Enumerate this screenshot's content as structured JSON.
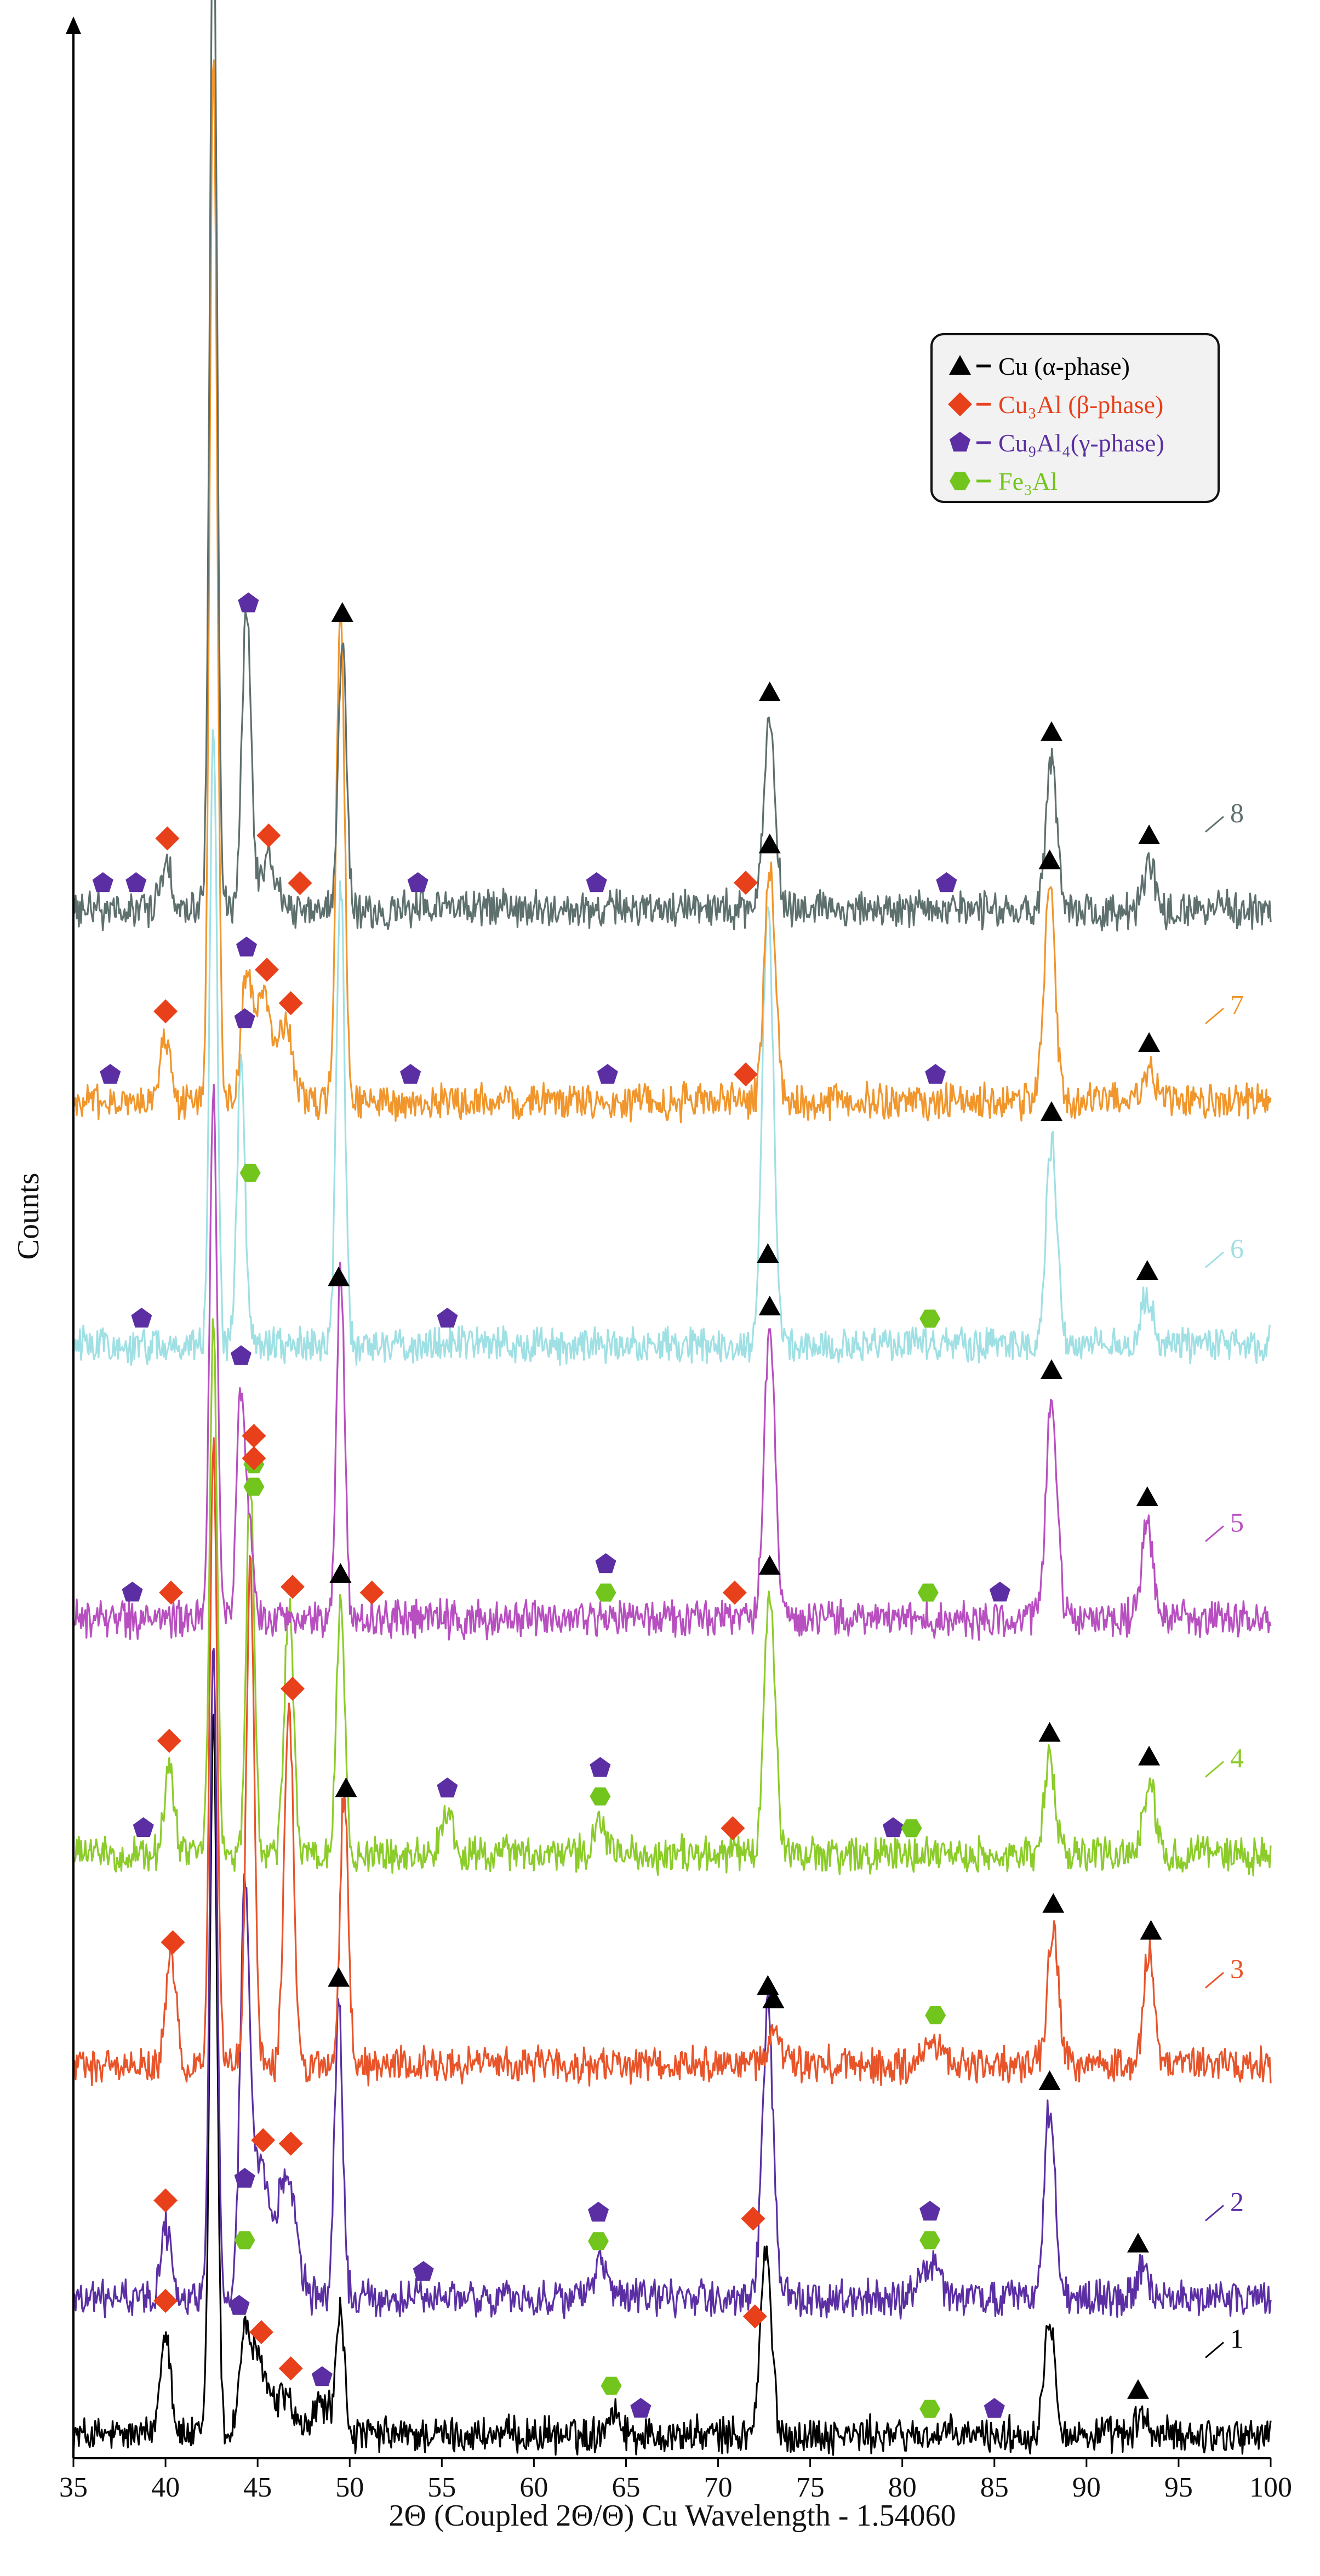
{
  "chart_data": {
    "type": "line",
    "xlabel": "2Θ (Coupled 2Θ/Θ) Cu Wavelength - 1.54060",
    "ylabel": "Counts",
    "xlim": [
      35,
      100
    ],
    "x_ticks": [
      35,
      40,
      45,
      50,
      55,
      60,
      65,
      70,
      75,
      80,
      85,
      90,
      95,
      100
    ],
    "y_ticks": false,
    "grid": false,
    "legend": {
      "placement": "top-right",
      "entries": [
        {
          "key": "alpha",
          "marker": "triangle",
          "color": "#000000",
          "label": "Cu (α-phase)"
        },
        {
          "key": "beta",
          "marker": "diamond",
          "color": "#e8401a",
          "label": "Cu₃Al (β-phase)"
        },
        {
          "key": "gamma",
          "marker": "pentagon",
          "color": "#5b2fa3",
          "label": "Cu₉Al₄(γ-phase)"
        },
        {
          "key": "fe3al",
          "marker": "hexagon",
          "color": "#72c51c",
          "label": "Fe₃Al"
        }
      ]
    },
    "series": [
      {
        "label": "1",
        "color": "#000000",
        "peaks": [
          [
            40.0,
            0.68,
            0.28
          ],
          [
            42.6,
            4.55,
            0.2
          ],
          [
            44.3,
            0.55,
            0.3
          ],
          [
            45.1,
            0.45,
            0.5
          ],
          [
            46.5,
            0.25,
            0.4
          ],
          [
            48.5,
            0.2,
            0.5
          ],
          [
            49.5,
            0.75,
            0.22
          ],
          [
            64.3,
            0.15,
            0.4
          ],
          [
            72.6,
            1.15,
            0.3
          ],
          [
            88.0,
            0.75,
            0.3
          ],
          [
            93.0,
            0.12,
            0.3
          ]
        ],
        "markers": [
          {
            "type": "beta",
            "x": 40.0
          },
          {
            "type": "gamma",
            "x": 44.0
          },
          {
            "type": "beta",
            "x": 45.2
          },
          {
            "type": "beta",
            "x": 46.8
          },
          {
            "type": "gamma",
            "x": 48.5
          },
          {
            "type": "fe3al",
            "x": 64.2
          },
          {
            "type": "gamma",
            "x": 65.8
          },
          {
            "type": "beta",
            "x": 72.0
          },
          {
            "type": "fe3al",
            "x": 81.5
          },
          {
            "type": "gamma",
            "x": 85.0
          },
          {
            "type": "alpha",
            "x": 92.8
          }
        ]
      },
      {
        "label": "2",
        "color": "#5b2fa3",
        "peaks": [
          [
            40.0,
            0.45,
            0.28
          ],
          [
            42.6,
            4.15,
            0.2
          ],
          [
            44.3,
            2.4,
            0.25
          ],
          [
            45.1,
            0.8,
            0.5
          ],
          [
            46.6,
            0.8,
            0.5
          ],
          [
            49.4,
            1.85,
            0.22
          ],
          [
            63.6,
            0.2,
            0.4
          ],
          [
            72.7,
            1.8,
            0.3
          ],
          [
            81.5,
            0.2,
            0.5
          ],
          [
            88.0,
            1.2,
            0.3
          ],
          [
            93.0,
            0.18,
            0.3
          ]
        ],
        "markers": [
          {
            "type": "beta",
            "x": 40.0
          },
          {
            "type": "gamma",
            "x": 44.3
          },
          {
            "type": "fe3al",
            "x": 44.3
          },
          {
            "type": "beta",
            "x": 45.3
          },
          {
            "type": "beta",
            "x": 46.8
          },
          {
            "type": "alpha",
            "x": 49.4
          },
          {
            "type": "gamma",
            "x": 54.0
          },
          {
            "type": "gamma",
            "x": 63.5
          },
          {
            "type": "fe3al",
            "x": 63.5
          },
          {
            "type": "beta",
            "x": 71.9
          },
          {
            "type": "alpha",
            "x": 72.7
          },
          {
            "type": "gamma",
            "x": 81.5
          },
          {
            "type": "fe3al",
            "x": 81.5
          },
          {
            "type": "alpha",
            "x": 88.0
          },
          {
            "type": "alpha",
            "x": 92.8
          }
        ]
      },
      {
        "label": "3",
        "color": "#e8542a",
        "peaks": [
          [
            40.3,
            0.65,
            0.28
          ],
          [
            42.6,
            3.95,
            0.2
          ],
          [
            44.6,
            3.15,
            0.22
          ],
          [
            46.7,
            2.25,
            0.25
          ],
          [
            49.7,
            1.75,
            0.22
          ],
          [
            73.0,
            0.25,
            0.3
          ],
          [
            81.8,
            0.15,
            0.5
          ],
          [
            88.2,
            0.85,
            0.3
          ],
          [
            93.4,
            0.72,
            0.3
          ]
        ],
        "markers": [
          {
            "type": "beta",
            "x": 40.4
          },
          {
            "type": "beta",
            "x": 46.9
          },
          {
            "type": "alpha",
            "x": 49.8
          },
          {
            "type": "alpha",
            "x": 73.0
          },
          {
            "type": "fe3al",
            "x": 81.8
          },
          {
            "type": "alpha",
            "x": 88.2
          },
          {
            "type": "alpha",
            "x": 93.5
          }
        ]
      },
      {
        "label": "4",
        "color": "#8ccc2a",
        "peaks": [
          [
            40.2,
            0.55,
            0.28
          ],
          [
            42.6,
            3.35,
            0.2
          ],
          [
            44.6,
            2.35,
            0.22
          ],
          [
            46.7,
            1.55,
            0.25
          ],
          [
            49.5,
            1.6,
            0.22
          ],
          [
            55.3,
            0.25,
            0.3
          ],
          [
            63.6,
            0.2,
            0.3
          ],
          [
            72.8,
            1.65,
            0.3
          ],
          [
            88.0,
            0.6,
            0.3
          ],
          [
            93.4,
            0.45,
            0.3
          ]
        ],
        "markers": [
          {
            "type": "gamma",
            "x": 38.8
          },
          {
            "type": "beta",
            "x": 40.2
          },
          {
            "type": "beta",
            "x": 44.8
          },
          {
            "type": "fe3al",
            "x": 44.8
          },
          {
            "type": "beta",
            "x": 46.9
          },
          {
            "type": "alpha",
            "x": 49.5
          },
          {
            "type": "gamma",
            "x": 55.3
          },
          {
            "type": "gamma",
            "x": 63.6
          },
          {
            "type": "fe3al",
            "x": 63.6
          },
          {
            "type": "beta",
            "x": 70.8
          },
          {
            "type": "alpha",
            "x": 72.8
          },
          {
            "type": "gamma",
            "x": 79.5
          },
          {
            "type": "fe3al",
            "x": 80.5
          },
          {
            "type": "alpha",
            "x": 88.0
          },
          {
            "type": "alpha",
            "x": 93.4
          }
        ]
      },
      {
        "label": "5",
        "color": "#b84fc0",
        "peaks": [
          [
            42.6,
            3.35,
            0.2
          ],
          [
            44.1,
            1.45,
            0.22
          ],
          [
            44.6,
            0.5,
            0.22
          ],
          [
            49.5,
            2.2,
            0.22
          ],
          [
            72.8,
            1.8,
            0.3
          ],
          [
            88.1,
            1.4,
            0.3
          ],
          [
            93.3,
            0.6,
            0.3
          ]
        ],
        "markers": [
          {
            "type": "gamma",
            "x": 38.2
          },
          {
            "type": "beta",
            "x": 40.3
          },
          {
            "type": "gamma",
            "x": 44.1
          },
          {
            "type": "beta",
            "x": 44.8
          },
          {
            "type": "fe3al",
            "x": 44.8
          },
          {
            "type": "alpha",
            "x": 49.4
          },
          {
            "type": "beta",
            "x": 51.2
          },
          {
            "type": "gamma",
            "x": 63.9
          },
          {
            "type": "fe3al",
            "x": 63.9
          },
          {
            "type": "beta",
            "x": 70.9
          },
          {
            "type": "alpha",
            "x": 72.8
          },
          {
            "type": "fe3al",
            "x": 81.4
          },
          {
            "type": "gamma",
            "x": 85.3
          },
          {
            "type": "alpha",
            "x": 88.1
          },
          {
            "type": "alpha",
            "x": 93.3
          }
        ]
      },
      {
        "label": "6",
        "color": "#9fe0e4",
        "peaks": [
          [
            42.6,
            3.85,
            0.2
          ],
          [
            44.1,
            1.75,
            0.22
          ],
          [
            49.5,
            2.95,
            0.22
          ],
          [
            72.7,
            2.8,
            0.3
          ],
          [
            88.1,
            1.3,
            0.3
          ],
          [
            93.3,
            0.3,
            0.3
          ]
        ],
        "markers": [
          {
            "type": "gamma",
            "x": 38.7
          },
          {
            "type": "gamma",
            "x": 44.3
          },
          {
            "type": "fe3al",
            "x": 44.6
          },
          {
            "type": "gamma",
            "x": 55.3
          },
          {
            "type": "alpha",
            "x": 72.7
          },
          {
            "type": "fe3al",
            "x": 81.5
          },
          {
            "type": "alpha",
            "x": 88.1
          },
          {
            "type": "alpha",
            "x": 93.3
          }
        ]
      },
      {
        "label": "7",
        "color": "#f0962c",
        "peaks": [
          [
            40.0,
            0.4,
            0.28
          ],
          [
            42.6,
            6.55,
            0.2
          ],
          [
            44.4,
            0.75,
            0.3
          ],
          [
            45.3,
            0.65,
            0.4
          ],
          [
            46.5,
            0.45,
            0.4
          ],
          [
            49.5,
            3.1,
            0.22
          ],
          [
            72.8,
            1.45,
            0.3
          ],
          [
            88.0,
            1.35,
            0.3
          ],
          [
            93.4,
            0.2,
            0.3
          ]
        ],
        "markers": [
          {
            "type": "gamma",
            "x": 37.0
          },
          {
            "type": "beta",
            "x": 40.0
          },
          {
            "type": "gamma",
            "x": 44.4
          },
          {
            "type": "beta",
            "x": 45.5
          },
          {
            "type": "beta",
            "x": 46.8
          },
          {
            "type": "gamma",
            "x": 53.3
          },
          {
            "type": "gamma",
            "x": 64.0
          },
          {
            "type": "beta",
            "x": 71.5
          },
          {
            "type": "alpha",
            "x": 72.8
          },
          {
            "type": "gamma",
            "x": 81.8
          },
          {
            "type": "alpha",
            "x": 88.0
          },
          {
            "type": "alpha",
            "x": 93.4
          }
        ]
      },
      {
        "label": "8",
        "color": "#5e706e",
        "peaks": [
          [
            40.0,
            0.3,
            0.28
          ],
          [
            42.6,
            6.4,
            0.2
          ],
          [
            44.4,
            1.9,
            0.25
          ],
          [
            45.6,
            0.3,
            0.4
          ],
          [
            49.6,
            1.7,
            0.22
          ],
          [
            72.8,
            1.2,
            0.3
          ],
          [
            88.1,
            0.95,
            0.3
          ],
          [
            93.4,
            0.3,
            0.3
          ]
        ],
        "markers": [
          {
            "type": "gamma",
            "x": 36.6
          },
          {
            "type": "gamma",
            "x": 38.4
          },
          {
            "type": "beta",
            "x": 40.1
          },
          {
            "type": "gamma",
            "x": 44.5
          },
          {
            "type": "beta",
            "x": 45.6
          },
          {
            "type": "beta",
            "x": 47.3
          },
          {
            "type": "alpha",
            "x": 49.6
          },
          {
            "type": "gamma",
            "x": 53.7
          },
          {
            "type": "gamma",
            "x": 63.4
          },
          {
            "type": "beta",
            "x": 71.5
          },
          {
            "type": "alpha",
            "x": 72.8
          },
          {
            "type": "gamma",
            "x": 82.4
          },
          {
            "type": "alpha",
            "x": 88.1
          },
          {
            "type": "alpha",
            "x": 93.4
          }
        ]
      }
    ]
  }
}
